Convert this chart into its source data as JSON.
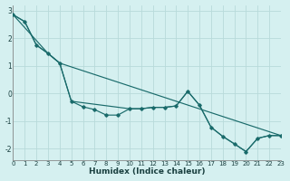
{
  "xlabel": "Humidex (Indice chaleur)",
  "bg_color": "#d5f0f0",
  "grid_color": "#b8dada",
  "line_color": "#1a6b6b",
  "series1_x": [
    0,
    1,
    2,
    3,
    4,
    5,
    6,
    7,
    8,
    9,
    10,
    11,
    12,
    13,
    14,
    15,
    16,
    17,
    18,
    19,
    20,
    21,
    22,
    23
  ],
  "series1_y": [
    2.85,
    2.6,
    1.75,
    1.45,
    1.1,
    -0.28,
    -0.48,
    -0.58,
    -0.78,
    -0.78,
    -0.55,
    -0.55,
    -0.5,
    -0.5,
    -0.45,
    0.08,
    -0.42,
    -1.22,
    -1.55,
    -1.82,
    -2.1,
    -1.62,
    -1.52,
    -1.52
  ],
  "series2_x": [
    0,
    1,
    2,
    3,
    4,
    5,
    10,
    11,
    12,
    13,
    14,
    15,
    16,
    17,
    18,
    19,
    20,
    21,
    22,
    23
  ],
  "series2_y": [
    2.85,
    2.6,
    1.75,
    1.45,
    1.1,
    -0.28,
    -0.55,
    -0.55,
    -0.5,
    -0.5,
    -0.45,
    0.08,
    -0.42,
    -1.22,
    -1.55,
    -1.82,
    -2.1,
    -1.62,
    -1.52,
    -1.52
  ],
  "series3_x": [
    0,
    3,
    4,
    23
  ],
  "series3_y": [
    2.85,
    1.45,
    1.1,
    -1.52
  ],
  "xlim": [
    0,
    23
  ],
  "ylim": [
    -2.4,
    3.2
  ],
  "yticks": [
    -2,
    -1,
    0,
    1,
    2,
    3
  ],
  "xticks": [
    0,
    1,
    2,
    3,
    4,
    5,
    6,
    7,
    8,
    9,
    10,
    11,
    12,
    13,
    14,
    15,
    16,
    17,
    18,
    19,
    20,
    21,
    22,
    23
  ]
}
